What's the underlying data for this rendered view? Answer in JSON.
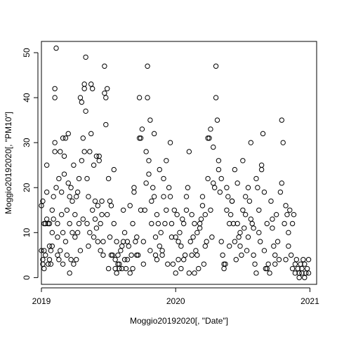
{
  "chart_data": {
    "type": "scatter",
    "xlabel": "Moggio20192020[, \"Date\"]",
    "ylabel": "Moggio20192020[, \"PM10\"]",
    "xlim": [
      2019.0,
      2021.05
    ],
    "ylim": [
      -1.5,
      52.5
    ],
    "x_ticks": [
      {
        "value": 2019,
        "label": "2019"
      },
      {
        "value": 2020,
        "label": "2020"
      },
      {
        "value": 2021,
        "label": "2021"
      }
    ],
    "y_ticks": [
      {
        "value": 0,
        "label": "0"
      },
      {
        "value": 10,
        "label": "10"
      },
      {
        "value": 20,
        "label": "20"
      },
      {
        "value": 30,
        "label": "30"
      },
      {
        "value": 40,
        "label": "40"
      },
      {
        "value": 50,
        "label": "50"
      }
    ],
    "marker": "open-circle",
    "point_color": "#000000",
    "points": [
      [
        2019.0,
        16
      ],
      [
        2019.0,
        6
      ],
      [
        2019.01,
        17
      ],
      [
        2019.01,
        4
      ],
      [
        2019.01,
        3
      ],
      [
        2019.02,
        12
      ],
      [
        2019.02,
        2
      ],
      [
        2019.02,
        6
      ],
      [
        2019.03,
        5
      ],
      [
        2019.03,
        12
      ],
      [
        2019.04,
        25
      ],
      [
        2019.04,
        19
      ],
      [
        2019.04,
        13
      ],
      [
        2019.05,
        12
      ],
      [
        2019.05,
        3
      ],
      [
        2019.06,
        7
      ],
      [
        2019.06,
        12
      ],
      [
        2019.06,
        4
      ],
      [
        2019.07,
        3
      ],
      [
        2019.07,
        6
      ],
      [
        2019.08,
        10
      ],
      [
        2019.08,
        15
      ],
      [
        2019.08,
        7
      ],
      [
        2019.09,
        18
      ],
      [
        2019.09,
        13
      ],
      [
        2019.1,
        28
      ],
      [
        2019.1,
        30
      ],
      [
        2019.1,
        40
      ],
      [
        2019.1,
        42
      ],
      [
        2019.11,
        51
      ],
      [
        2019.11,
        20
      ],
      [
        2019.12,
        5
      ],
      [
        2019.12,
        12
      ],
      [
        2019.12,
        9
      ],
      [
        2019.13,
        4
      ],
      [
        2019.13,
        22
      ],
      [
        2019.14,
        28
      ],
      [
        2019.14,
        6
      ],
      [
        2019.15,
        19
      ],
      [
        2019.15,
        14
      ],
      [
        2019.16,
        31
      ],
      [
        2019.16,
        10
      ],
      [
        2019.16,
        3
      ],
      [
        2019.17,
        27
      ],
      [
        2019.17,
        23
      ],
      [
        2019.18,
        31
      ],
      [
        2019.18,
        8
      ],
      [
        2019.19,
        15
      ],
      [
        2019.19,
        5
      ],
      [
        2019.2,
        21
      ],
      [
        2019.2,
        32
      ],
      [
        2019.21,
        18
      ],
      [
        2019.21,
        12
      ],
      [
        2019.21,
        1
      ],
      [
        2019.22,
        20
      ],
      [
        2019.22,
        4
      ],
      [
        2019.23,
        10
      ],
      [
        2019.23,
        17
      ],
      [
        2019.24,
        3
      ],
      [
        2019.24,
        25
      ],
      [
        2019.25,
        9
      ],
      [
        2019.25,
        14
      ],
      [
        2019.26,
        18
      ],
      [
        2019.26,
        4
      ],
      [
        2019.27,
        10
      ],
      [
        2019.27,
        19
      ],
      [
        2019.28,
        22
      ],
      [
        2019.28,
        12
      ],
      [
        2019.29,
        40
      ],
      [
        2019.29,
        6
      ],
      [
        2019.3,
        39
      ],
      [
        2019.3,
        26
      ],
      [
        2019.31,
        31
      ],
      [
        2019.31,
        13
      ],
      [
        2019.32,
        28
      ],
      [
        2019.32,
        43
      ],
      [
        2019.32,
        42
      ],
      [
        2019.33,
        37
      ],
      [
        2019.33,
        49
      ],
      [
        2019.34,
        22
      ],
      [
        2019.34,
        12
      ],
      [
        2019.35,
        7
      ],
      [
        2019.35,
        18
      ],
      [
        2019.36,
        10
      ],
      [
        2019.36,
        28
      ],
      [
        2019.37,
        32
      ],
      [
        2019.37,
        43
      ],
      [
        2019.38,
        42
      ],
      [
        2019.38,
        15
      ],
      [
        2019.39,
        25
      ],
      [
        2019.39,
        9
      ],
      [
        2019.4,
        17
      ],
      [
        2019.4,
        13
      ],
      [
        2019.41,
        11
      ],
      [
        2019.41,
        27
      ],
      [
        2019.42,
        16
      ],
      [
        2019.42,
        8
      ],
      [
        2019.43,
        26
      ],
      [
        2019.43,
        27
      ],
      [
        2019.44,
        12
      ],
      [
        2019.44,
        6
      ],
      [
        2019.45,
        17
      ],
      [
        2019.45,
        14
      ],
      [
        2019.46,
        8
      ],
      [
        2019.46,
        5
      ],
      [
        2019.47,
        47
      ],
      [
        2019.47,
        41
      ],
      [
        2019.48,
        34
      ],
      [
        2019.48,
        40
      ],
      [
        2019.49,
        14
      ],
      [
        2019.49,
        42
      ],
      [
        2019.5,
        22
      ],
      [
        2019.5,
        2
      ],
      [
        2019.51,
        17
      ],
      [
        2019.51,
        9
      ],
      [
        2019.52,
        5
      ],
      [
        2019.52,
        16
      ],
      [
        2019.53,
        5
      ],
      [
        2019.54,
        24
      ],
      [
        2019.54,
        12
      ],
      [
        2019.55,
        4
      ],
      [
        2019.55,
        2
      ],
      [
        2019.56,
        8
      ],
      [
        2019.56,
        1
      ],
      [
        2019.57,
        3
      ],
      [
        2019.57,
        5
      ],
      [
        2019.58,
        2
      ],
      [
        2019.58,
        3
      ],
      [
        2019.59,
        6
      ],
      [
        2019.6,
        7
      ],
      [
        2019.6,
        2
      ],
      [
        2019.61,
        15
      ],
      [
        2019.61,
        8
      ],
      [
        2019.62,
        10
      ],
      [
        2019.62,
        4
      ],
      [
        2019.63,
        2
      ],
      [
        2019.64,
        8
      ],
      [
        2019.64,
        4
      ],
      [
        2019.65,
        7
      ],
      [
        2019.66,
        1
      ],
      [
        2019.66,
        16
      ],
      [
        2019.67,
        5
      ],
      [
        2019.68,
        12
      ],
      [
        2019.68,
        2
      ],
      [
        2019.69,
        20
      ],
      [
        2019.69,
        19
      ],
      [
        2019.7,
        8
      ],
      [
        2019.71,
        9
      ],
      [
        2019.71,
        5
      ],
      [
        2019.72,
        5
      ],
      [
        2019.73,
        40
      ],
      [
        2019.73,
        31
      ],
      [
        2019.74,
        15
      ],
      [
        2019.74,
        31
      ],
      [
        2019.75,
        33
      ],
      [
        2019.76,
        3
      ],
      [
        2019.76,
        8
      ],
      [
        2019.77,
        15
      ],
      [
        2019.78,
        21
      ],
      [
        2019.78,
        28
      ],
      [
        2019.79,
        40
      ],
      [
        2019.79,
        47
      ],
      [
        2019.8,
        23
      ],
      [
        2019.8,
        26
      ],
      [
        2019.81,
        6
      ],
      [
        2019.81,
        35
      ],
      [
        2019.82,
        17
      ],
      [
        2019.82,
        12
      ],
      [
        2019.83,
        20
      ],
      [
        2019.84,
        32
      ],
      [
        2019.84,
        18
      ],
      [
        2019.85,
        9
      ],
      [
        2019.85,
        5
      ],
      [
        2019.86,
        4
      ],
      [
        2019.86,
        14
      ],
      [
        2019.87,
        12
      ],
      [
        2019.88,
        7
      ],
      [
        2019.88,
        24
      ],
      [
        2019.89,
        10
      ],
      [
        2019.9,
        6
      ],
      [
        2019.9,
        5
      ],
      [
        2019.91,
        22
      ],
      [
        2019.91,
        18
      ],
      [
        2019.92,
        12
      ],
      [
        2019.93,
        15
      ],
      [
        2019.93,
        26
      ],
      [
        2019.94,
        3
      ],
      [
        2019.95,
        20
      ],
      [
        2019.96,
        18
      ],
      [
        2019.96,
        30
      ],
      [
        2019.97,
        9
      ],
      [
        2019.97,
        12
      ],
      [
        2019.98,
        3
      ],
      [
        2019.99,
        15
      ],
      [
        2020.0,
        1
      ],
      [
        2020.0,
        9
      ],
      [
        2020.01,
        14
      ],
      [
        2020.02,
        8
      ],
      [
        2020.02,
        4
      ],
      [
        2020.03,
        10
      ],
      [
        2020.04,
        7
      ],
      [
        2020.04,
        2
      ],
      [
        2020.05,
        13
      ],
      [
        2020.06,
        12
      ],
      [
        2020.06,
        4
      ],
      [
        2020.07,
        5
      ],
      [
        2020.08,
        18
      ],
      [
        2020.08,
        15
      ],
      [
        2020.09,
        20
      ],
      [
        2020.1,
        28
      ],
      [
        2020.1,
        1
      ],
      [
        2020.11,
        8
      ],
      [
        2020.12,
        5
      ],
      [
        2020.12,
        14
      ],
      [
        2020.13,
        9
      ],
      [
        2020.14,
        12
      ],
      [
        2020.14,
        1
      ],
      [
        2020.15,
        6
      ],
      [
        2020.16,
        5
      ],
      [
        2020.16,
        10
      ],
      [
        2020.17,
        2
      ],
      [
        2020.18,
        11
      ],
      [
        2020.18,
        12
      ],
      [
        2020.19,
        13
      ],
      [
        2020.2,
        16
      ],
      [
        2020.2,
        18
      ],
      [
        2020.21,
        3
      ],
      [
        2020.22,
        7
      ],
      [
        2020.22,
        14
      ],
      [
        2020.23,
        8
      ],
      [
        2020.24,
        22
      ],
      [
        2020.24,
        31
      ],
      [
        2020.25,
        31
      ],
      [
        2020.26,
        33
      ],
      [
        2020.26,
        15
      ],
      [
        2020.27,
        9
      ],
      [
        2020.28,
        29
      ],
      [
        2020.28,
        21
      ],
      [
        2020.29,
        20
      ],
      [
        2020.3,
        40
      ],
      [
        2020.3,
        47
      ],
      [
        2020.31,
        35
      ],
      [
        2020.32,
        26
      ],
      [
        2020.32,
        24
      ],
      [
        2020.33,
        19
      ],
      [
        2020.34,
        22
      ],
      [
        2020.34,
        8
      ],
      [
        2020.35,
        5
      ],
      [
        2020.36,
        2
      ],
      [
        2020.36,
        3
      ],
      [
        2020.37,
        3
      ],
      [
        2020.38,
        15
      ],
      [
        2020.38,
        20
      ],
      [
        2020.39,
        18
      ],
      [
        2020.4,
        12
      ],
      [
        2020.4,
        7
      ],
      [
        2020.41,
        14
      ],
      [
        2020.42,
        17
      ],
      [
        2020.42,
        17
      ],
      [
        2020.43,
        12
      ],
      [
        2020.44,
        24
      ],
      [
        2020.44,
        8
      ],
      [
        2020.45,
        4
      ],
      [
        2020.46,
        21
      ],
      [
        2020.46,
        12
      ],
      [
        2020.47,
        9
      ],
      [
        2020.48,
        7
      ],
      [
        2020.48,
        10
      ],
      [
        2020.49,
        5
      ],
      [
        2020.5,
        15
      ],
      [
        2020.5,
        26
      ],
      [
        2020.51,
        11
      ],
      [
        2020.52,
        14
      ],
      [
        2020.52,
        18
      ],
      [
        2020.53,
        6
      ],
      [
        2020.54,
        9
      ],
      [
        2020.54,
        20
      ],
      [
        2020.55,
        17
      ],
      [
        2020.56,
        30
      ],
      [
        2020.56,
        13
      ],
      [
        2020.57,
        12
      ],
      [
        2020.58,
        11
      ],
      [
        2020.58,
        5
      ],
      [
        2020.59,
        3
      ],
      [
        2020.6,
        1
      ],
      [
        2020.6,
        22
      ],
      [
        2020.61,
        20
      ],
      [
        2020.62,
        15
      ],
      [
        2020.62,
        10
      ],
      [
        2020.63,
        8
      ],
      [
        2020.64,
        25
      ],
      [
        2020.64,
        24
      ],
      [
        2020.65,
        32
      ],
      [
        2020.66,
        19
      ],
      [
        2020.66,
        6
      ],
      [
        2020.67,
        2
      ],
      [
        2020.68,
        12
      ],
      [
        2020.68,
        2
      ],
      [
        2020.69,
        3
      ],
      [
        2020.7,
        1
      ],
      [
        2020.71,
        17
      ],
      [
        2020.72,
        13
      ],
      [
        2020.72,
        11
      ],
      [
        2020.73,
        7
      ],
      [
        2020.74,
        5
      ],
      [
        2020.74,
        3
      ],
      [
        2020.75,
        14
      ],
      [
        2020.76,
        8
      ],
      [
        2020.77,
        4
      ],
      [
        2020.78,
        19
      ],
      [
        2020.79,
        35
      ],
      [
        2020.79,
        21
      ],
      [
        2020.8,
        30
      ],
      [
        2020.81,
        12
      ],
      [
        2020.82,
        16
      ],
      [
        2020.82,
        4
      ],
      [
        2020.83,
        14
      ],
      [
        2020.84,
        10
      ],
      [
        2020.84,
        7
      ],
      [
        2020.85,
        15
      ],
      [
        2020.86,
        5
      ],
      [
        2020.87,
        12
      ],
      [
        2020.87,
        2
      ],
      [
        2020.88,
        14
      ],
      [
        2020.89,
        3
      ],
      [
        2020.89,
        1
      ],
      [
        2020.9,
        4
      ],
      [
        2020.91,
        2
      ],
      [
        2020.92,
        1
      ],
      [
        2020.92,
        0
      ],
      [
        2020.93,
        3
      ],
      [
        2020.94,
        1
      ],
      [
        2020.94,
        2
      ],
      [
        2020.95,
        4
      ],
      [
        2020.96,
        0
      ],
      [
        2020.96,
        3
      ],
      [
        2020.97,
        1
      ],
      [
        2020.98,
        2
      ],
      [
        2020.99,
        4
      ],
      [
        2020.99,
        1
      ]
    ]
  }
}
